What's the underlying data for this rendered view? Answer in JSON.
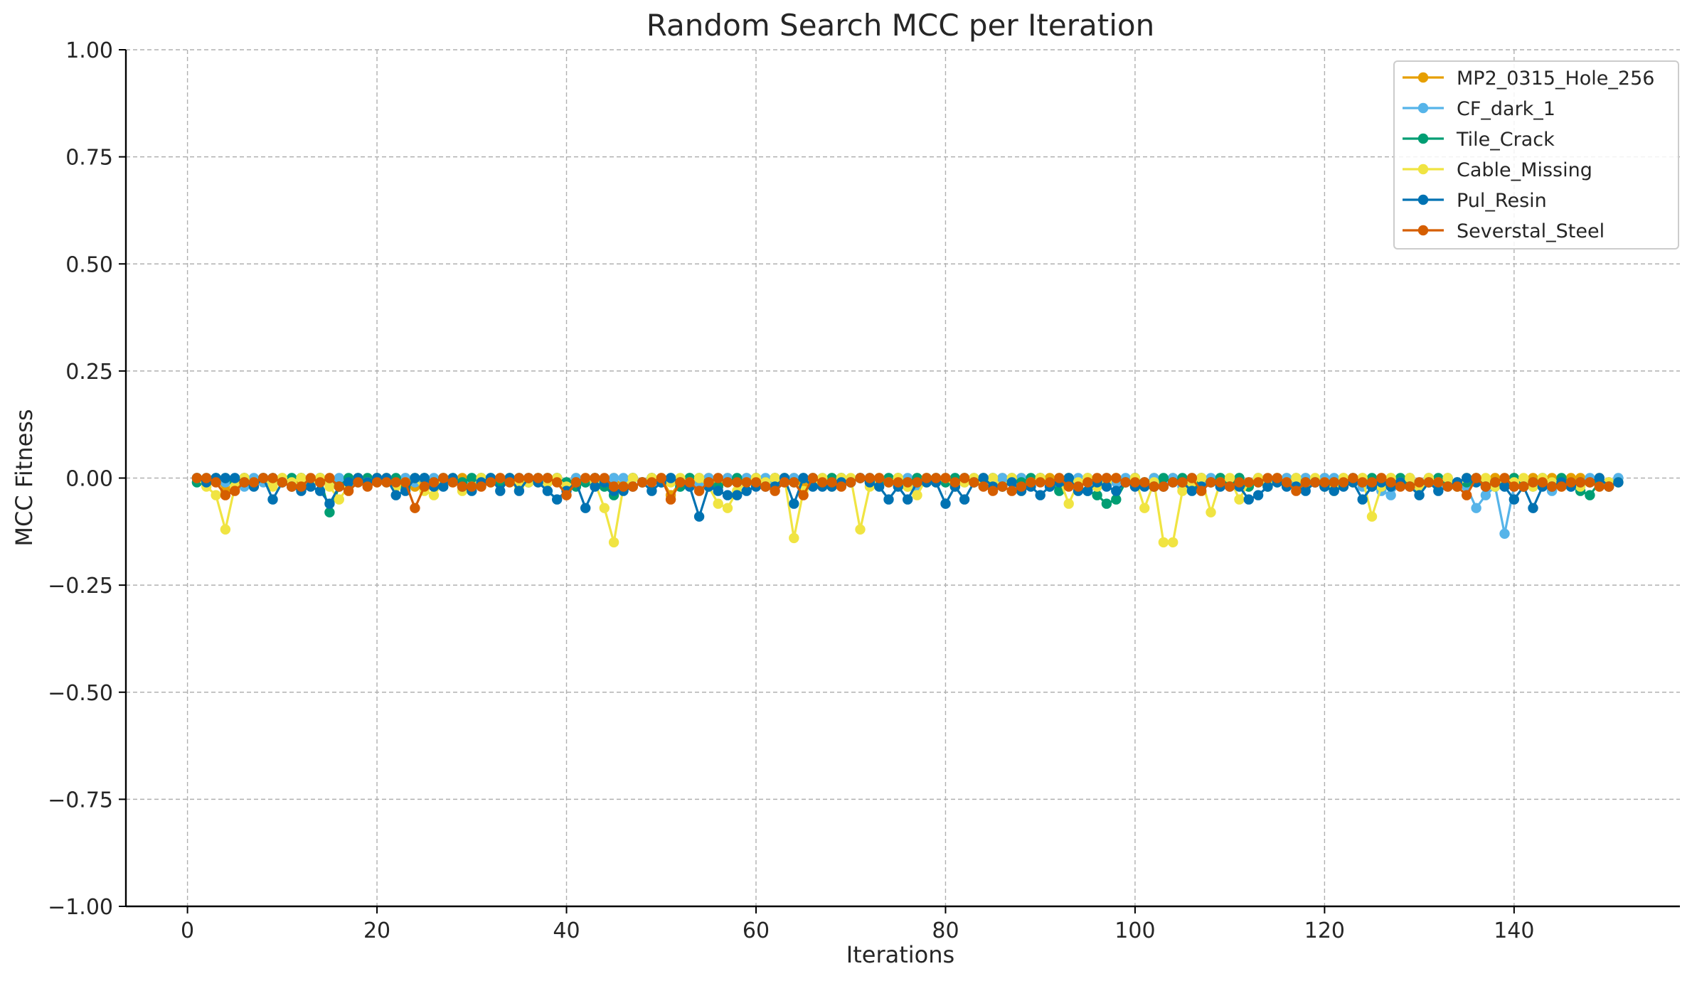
{
  "chart_data": {
    "type": "line",
    "title": "Random Search MCC per Iteration",
    "xlabel": "Iterations",
    "ylabel": "MCC Fitness",
    "xlim": [
      -6.5,
      157.5
    ],
    "ylim": [
      -1.0,
      1.0
    ],
    "xticks": [
      0,
      20,
      40,
      60,
      80,
      100,
      120,
      140
    ],
    "xtick_labels": [
      "0",
      "20",
      "40",
      "60",
      "80",
      "100",
      "120",
      "140"
    ],
    "yticks": [
      1.0,
      0.75,
      0.5,
      0.25,
      0.0,
      -0.25,
      -0.5,
      -0.75,
      -1.0
    ],
    "ytick_labels": [
      "1.00",
      "0.75",
      "0.50",
      "0.25",
      "0.00",
      "−0.25",
      "−0.50",
      "−0.75",
      "−1.00"
    ],
    "grid": true,
    "legend_position": "top-right",
    "x_start": 1,
    "series": [
      {
        "name": "MP2_0315_Hole_256",
        "color": "#E69F00",
        "values": [
          0.0,
          -0.01,
          0.0,
          -0.03,
          -0.01,
          0.0,
          -0.01,
          0.0,
          -0.01,
          0.0,
          -0.02,
          0.0,
          -0.01,
          0.0,
          0.0,
          -0.01,
          -0.02,
          0.0,
          -0.01,
          0.0,
          0.0,
          -0.01,
          0.0,
          -0.02,
          0.0,
          -0.01,
          0.0,
          -0.01,
          0.0,
          -0.02,
          0.0,
          -0.01,
          0.0,
          0.0,
          -0.01,
          0.0,
          -0.01,
          0.0,
          0.0,
          -0.02,
          0.0,
          -0.01,
          0.0,
          -0.01,
          0.0,
          -0.02,
          0.0,
          -0.01,
          0.0,
          0.0,
          -0.04,
          -0.01,
          0.0,
          -0.01,
          0.0,
          -0.02,
          0.0,
          -0.01,
          0.0,
          0.0,
          -0.01,
          0.0,
          -0.01,
          0.0,
          -0.02,
          0.0,
          -0.01,
          0.0,
          0.0,
          -0.01,
          0.0,
          -0.01,
          0.0,
          -0.01,
          0.0,
          -0.02,
          0.0,
          -0.01,
          0.0,
          0.0,
          -0.01,
          0.0,
          -0.01,
          0.0,
          -0.02,
          0.0,
          -0.01,
          0.0,
          -0.01,
          0.0,
          0.0,
          -0.01,
          0.0,
          -0.02,
          0.0,
          -0.01,
          0.0,
          0.0,
          -0.01,
          0.0,
          -0.01,
          0.0,
          -0.02,
          0.0,
          -0.01,
          0.0,
          0.0,
          -0.01,
          0.0,
          -0.01,
          0.0,
          -0.02,
          0.0,
          -0.01,
          0.0,
          0.0,
          -0.01,
          0.0,
          -0.01,
          0.0,
          -0.02,
          0.0,
          -0.01,
          0.0,
          -0.01,
          0.0,
          0.0,
          -0.01,
          0.0,
          -0.02,
          0.0,
          -0.01,
          0.0,
          -0.01,
          0.0,
          0.0,
          -0.01,
          0.0,
          -0.01,
          0.0,
          -0.02,
          0.0,
          -0.01,
          0.0,
          -0.01,
          0.0,
          0.0,
          -0.01,
          0.0,
          -0.01
        ]
      },
      {
        "name": "CF_dark_1",
        "color": "#56B4E9",
        "values": [
          0.0,
          -0.01,
          0.0,
          -0.01,
          0.0,
          -0.02,
          0.0,
          -0.01,
          0.0,
          -0.01,
          0.0,
          0.0,
          -0.01,
          0.0,
          -0.01,
          0.0,
          -0.02,
          0.0,
          -0.01,
          0.0,
          0.0,
          -0.01,
          0.0,
          -0.01,
          0.0,
          0.0,
          -0.01,
          0.0,
          -0.02,
          0.0,
          -0.01,
          0.0,
          -0.01,
          0.0,
          0.0,
          -0.01,
          0.0,
          -0.01,
          0.0,
          -0.02,
          0.0,
          -0.01,
          0.0,
          -0.01,
          0.0,
          0.0,
          0.0,
          -0.01,
          0.0,
          -0.01,
          0.0,
          -0.02,
          0.0,
          -0.01,
          0.0,
          0.0,
          0.0,
          -0.01,
          0.0,
          0.0,
          0.0,
          -0.01,
          0.0,
          0.0,
          0.0,
          -0.01,
          0.0,
          -0.01,
          0.0,
          -0.01,
          0.0,
          0.0,
          -0.01,
          0.0,
          -0.01,
          0.0,
          -0.02,
          0.0,
          -0.01,
          0.0,
          0.0,
          -0.01,
          0.0,
          -0.01,
          0.0,
          0.0,
          -0.01,
          0.0,
          -0.01,
          0.0,
          -0.02,
          0.0,
          -0.01,
          0.0,
          0.0,
          -0.01,
          0.0,
          -0.01,
          0.0,
          0.0,
          -0.01,
          0.0,
          -0.01,
          0.0,
          -0.02,
          0.0,
          -0.01,
          0.0,
          0.0,
          -0.01,
          0.0,
          -0.01,
          0.0,
          -0.01,
          0.0,
          0.0,
          -0.01,
          0.0,
          -0.01,
          0.0,
          0.0,
          -0.01,
          0.0,
          -0.02,
          -0.02,
          -0.03,
          -0.04,
          -0.01,
          0.0,
          -0.01,
          0.0,
          -0.02,
          0.0,
          -0.01,
          -0.02,
          -0.07,
          -0.04,
          -0.02,
          -0.13,
          -0.02,
          -0.01,
          -0.02,
          -0.01,
          -0.03,
          -0.01,
          -0.02,
          -0.01,
          0.0,
          -0.01,
          -0.01,
          0.0
        ]
      },
      {
        "name": "Tile_Crack",
        "color": "#009E73",
        "values": [
          -0.01,
          0.0,
          0.0,
          0.0,
          -0.01,
          0.0,
          -0.01,
          0.0,
          0.0,
          -0.01,
          0.0,
          0.0,
          -0.01,
          0.0,
          -0.08,
          -0.02,
          0.0,
          -0.01,
          0.0,
          0.0,
          -0.01,
          0.0,
          -0.02,
          0.0,
          0.0,
          -0.01,
          0.0,
          0.0,
          -0.01,
          0.0,
          0.0,
          0.0,
          -0.01,
          0.0,
          0.0,
          -0.01,
          0.0,
          0.0,
          0.0,
          -0.01,
          -0.02,
          -0.01,
          0.0,
          -0.02,
          -0.04,
          -0.02,
          0.0,
          -0.01,
          0.0,
          -0.01,
          0.0,
          -0.02,
          0.0,
          0.0,
          -0.01,
          -0.02,
          -0.01,
          0.0,
          -0.01,
          0.0,
          -0.01,
          0.0,
          0.0,
          -0.01,
          0.0,
          0.0,
          -0.01,
          0.0,
          0.0,
          -0.01,
          0.0,
          0.0,
          -0.01,
          0.0,
          0.0,
          -0.01,
          0.0,
          0.0,
          0.0,
          -0.01,
          0.0,
          0.0,
          -0.01,
          0.0,
          0.0,
          -0.02,
          0.0,
          -0.01,
          0.0,
          0.0,
          -0.01,
          -0.03,
          0.0,
          -0.02,
          -0.03,
          -0.04,
          -0.06,
          -0.05,
          -0.01,
          0.0,
          -0.01,
          -0.02,
          0.0,
          -0.01,
          0.0,
          -0.02,
          0.0,
          -0.01,
          0.0,
          -0.01,
          0.0,
          -0.02,
          -0.01,
          -0.02,
          -0.01,
          -0.01,
          0.0,
          -0.01,
          -0.01,
          -0.02,
          -0.01,
          -0.01,
          0.0,
          -0.01,
          0.0,
          -0.02,
          -0.01,
          0.0,
          -0.01,
          -0.02,
          -0.01,
          0.0,
          -0.01,
          -0.02,
          -0.01,
          0.0,
          -0.01,
          -0.02,
          -0.01,
          0.0,
          -0.02,
          -0.01,
          0.0,
          -0.01,
          0.0,
          -0.01,
          -0.03,
          -0.04,
          -0.01,
          -0.02,
          -0.01
        ]
      },
      {
        "name": "Cable_Missing",
        "color": "#F0E442",
        "values": [
          0.0,
          -0.02,
          -0.04,
          -0.12,
          -0.02,
          0.0,
          -0.01,
          0.0,
          -0.02,
          0.0,
          -0.01,
          0.0,
          -0.01,
          0.0,
          -0.02,
          -0.05,
          -0.02,
          0.0,
          -0.01,
          0.0,
          0.0,
          -0.02,
          -0.01,
          0.0,
          -0.03,
          -0.04,
          -0.01,
          0.0,
          -0.03,
          -0.02,
          0.0,
          -0.01,
          0.0,
          0.0,
          -0.02,
          -0.01,
          0.0,
          -0.01,
          0.0,
          -0.02,
          -0.01,
          0.0,
          -0.01,
          -0.07,
          -0.15,
          -0.02,
          0.0,
          -0.01,
          0.0,
          0.0,
          -0.01,
          0.0,
          -0.01,
          0.0,
          -0.02,
          -0.06,
          -0.07,
          -0.03,
          -0.01,
          0.0,
          -0.01,
          0.0,
          0.0,
          -0.14,
          -0.03,
          -0.01,
          0.0,
          -0.02,
          0.0,
          0.0,
          -0.12,
          -0.02,
          0.0,
          -0.01,
          0.0,
          -0.02,
          -0.04,
          0.0,
          -0.01,
          0.0,
          -0.02,
          -0.01,
          0.0,
          -0.01,
          0.0,
          -0.02,
          0.0,
          -0.03,
          -0.01,
          0.0,
          -0.01,
          0.0,
          -0.06,
          -0.01,
          0.0,
          -0.02,
          -0.01,
          0.0,
          -0.01,
          0.0,
          -0.07,
          -0.01,
          -0.15,
          -0.15,
          -0.03,
          -0.01,
          0.0,
          -0.08,
          -0.01,
          0.0,
          -0.05,
          -0.01,
          0.0,
          -0.02,
          0.0,
          -0.01,
          0.0,
          -0.02,
          0.0,
          -0.01,
          -0.03,
          0.0,
          -0.01,
          0.0,
          -0.09,
          -0.02,
          0.0,
          -0.01,
          0.0,
          -0.02,
          0.0,
          -0.01,
          0.0,
          -0.02,
          0.0,
          -0.01,
          0.0,
          -0.02,
          0.0,
          -0.01,
          0.0,
          -0.02,
          0.0,
          -0.01,
          -0.02,
          -0.01,
          -0.02,
          -0.01,
          -0.02,
          -0.01,
          -0.01
        ]
      },
      {
        "name": "Pul_Resin",
        "color": "#0072B2",
        "values": [
          0.0,
          -0.01,
          0.0,
          0.0,
          0.0,
          -0.01,
          -0.02,
          0.0,
          -0.05,
          -0.01,
          -0.02,
          -0.03,
          -0.02,
          -0.03,
          -0.06,
          -0.02,
          -0.01,
          0.0,
          -0.01,
          0.0,
          0.0,
          -0.04,
          -0.03,
          0.0,
          0.0,
          -0.02,
          -0.02,
          0.0,
          -0.02,
          -0.03,
          -0.01,
          0.0,
          -0.03,
          0.0,
          -0.03,
          0.0,
          -0.01,
          -0.03,
          -0.05,
          -0.03,
          -0.01,
          -0.07,
          -0.02,
          -0.01,
          -0.03,
          -0.03,
          -0.02,
          -0.01,
          -0.03,
          -0.01,
          0.0,
          -0.01,
          -0.02,
          -0.09,
          -0.02,
          -0.03,
          -0.04,
          -0.04,
          -0.03,
          -0.02,
          -0.02,
          -0.02,
          0.0,
          -0.06,
          0.0,
          -0.02,
          -0.02,
          -0.02,
          -0.01,
          -0.01,
          0.0,
          -0.01,
          -0.02,
          -0.05,
          -0.02,
          -0.05,
          -0.01,
          -0.01,
          -0.01,
          -0.06,
          -0.02,
          -0.05,
          -0.01,
          0.0,
          -0.02,
          -0.02,
          -0.01,
          -0.03,
          -0.02,
          -0.04,
          -0.02,
          -0.01,
          0.0,
          -0.03,
          -0.03,
          -0.01,
          -0.02,
          -0.03,
          -0.01,
          -0.02,
          -0.02,
          -0.02,
          -0.02,
          -0.01,
          -0.01,
          -0.03,
          -0.02,
          -0.01,
          -0.02,
          -0.02,
          -0.02,
          -0.05,
          -0.04,
          -0.02,
          -0.01,
          -0.02,
          -0.02,
          -0.03,
          -0.01,
          -0.02,
          -0.03,
          -0.02,
          -0.01,
          -0.05,
          -0.02,
          -0.01,
          -0.02,
          -0.01,
          -0.02,
          -0.04,
          -0.01,
          -0.03,
          -0.02,
          -0.01,
          0.0,
          -0.01,
          -0.02,
          -0.01,
          -0.02,
          -0.05,
          -0.02,
          -0.07,
          -0.02,
          -0.02,
          -0.01,
          -0.02,
          -0.01,
          -0.01,
          0.0,
          -0.02,
          -0.01
        ]
      },
      {
        "name": "Severstal_Steel",
        "color": "#D55E00",
        "values": [
          0.0,
          0.0,
          -0.01,
          -0.04,
          -0.03,
          -0.01,
          -0.01,
          0.0,
          0.0,
          -0.01,
          -0.02,
          -0.02,
          0.0,
          -0.01,
          0.0,
          -0.02,
          -0.03,
          -0.01,
          -0.02,
          -0.01,
          -0.01,
          -0.01,
          -0.01,
          -0.07,
          -0.02,
          -0.01,
          0.0,
          -0.01,
          -0.02,
          -0.02,
          -0.02,
          -0.01,
          0.0,
          -0.01,
          0.0,
          0.0,
          0.0,
          0.0,
          -0.01,
          -0.04,
          -0.01,
          0.0,
          0.0,
          0.0,
          -0.02,
          -0.02,
          -0.02,
          -0.01,
          -0.01,
          0.0,
          -0.05,
          -0.01,
          -0.01,
          -0.03,
          -0.01,
          0.0,
          -0.01,
          -0.01,
          -0.01,
          -0.01,
          -0.02,
          -0.03,
          -0.01,
          -0.01,
          -0.04,
          0.0,
          -0.01,
          -0.01,
          -0.02,
          -0.01,
          0.0,
          0.0,
          0.0,
          -0.01,
          -0.01,
          -0.01,
          -0.01,
          0.0,
          0.0,
          0.0,
          -0.01,
          0.0,
          -0.01,
          -0.02,
          -0.03,
          -0.02,
          -0.03,
          -0.02,
          -0.01,
          -0.01,
          -0.01,
          0.0,
          -0.02,
          -0.02,
          -0.01,
          0.0,
          0.0,
          0.0,
          -0.01,
          -0.01,
          -0.01,
          -0.02,
          -0.02,
          -0.01,
          -0.01,
          0.0,
          -0.03,
          -0.01,
          -0.01,
          -0.02,
          -0.01,
          -0.01,
          -0.01,
          0.0,
          0.0,
          -0.01,
          -0.03,
          -0.01,
          -0.01,
          -0.01,
          -0.01,
          -0.01,
          0.0,
          -0.01,
          -0.01,
          0.0,
          -0.01,
          -0.02,
          -0.02,
          -0.01,
          -0.01,
          -0.01,
          -0.02,
          -0.02,
          -0.04,
          0.0,
          -0.02,
          -0.01,
          0.0,
          -0.02,
          -0.02,
          -0.01,
          -0.01,
          -0.02,
          -0.02,
          -0.01,
          -0.01,
          -0.01,
          -0.02,
          -0.02
        ]
      }
    ]
  }
}
